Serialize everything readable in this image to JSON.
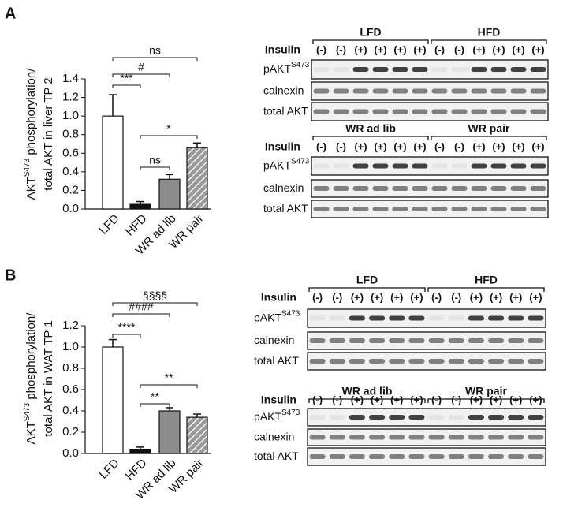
{
  "panel_labels": [
    "A",
    "B"
  ],
  "chart_data": [
    {
      "type": "bar",
      "y_label": {
        "base": "AKT",
        "sup": "S473",
        "rest": " phosphorylation/",
        "line2": "total AKT in liver TP 2"
      },
      "categories": [
        "LFD",
        "HFD",
        "WR ad lib",
        "WR pair"
      ],
      "values": [
        1.0,
        0.05,
        0.32,
        0.66
      ],
      "errors": [
        0.23,
        0.03,
        0.05,
        0.05
      ],
      "colors": [
        "#ffffff",
        "#111111",
        "#8c8c8c",
        "#9a9a9a"
      ],
      "hatch": [
        false,
        false,
        false,
        true
      ],
      "ylim": [
        0,
        1.4
      ],
      "yticks": [
        {
          "value": 0,
          "label": "0.0"
        },
        {
          "value": 0.2,
          "label": "0.2"
        },
        {
          "value": 0.4,
          "label": "0.4"
        },
        {
          "value": 0.6,
          "label": "0.6"
        },
        {
          "value": 0.8,
          "label": "0.8"
        },
        {
          "value": 1.0,
          "label": "1.0"
        },
        {
          "value": 1.2,
          "label": "1.2"
        },
        {
          "value": 1.4,
          "label": "1.4"
        }
      ],
      "annotations": [
        {
          "text": "***",
          "between": [
            "LFD",
            "HFD"
          ]
        },
        {
          "text": "#",
          "between": [
            "LFD",
            "WR ad lib"
          ]
        },
        {
          "text": "ns",
          "between": [
            "LFD",
            "WR pair"
          ]
        },
        {
          "text": "ns",
          "between": [
            "HFD",
            "WR ad lib"
          ]
        },
        {
          "text": "*",
          "between": [
            "HFD",
            "WR pair"
          ]
        }
      ]
    },
    {
      "type": "bar",
      "y_label": {
        "base": "AKT",
        "sup": "S473",
        "rest": " phosphorylation/",
        "line2": "total AKT in WAT TP 1"
      },
      "categories": [
        "LFD",
        "HFD",
        "WR ad lib",
        "WR pair"
      ],
      "values": [
        1.0,
        0.04,
        0.4,
        0.34
      ],
      "errors": [
        0.07,
        0.02,
        0.03,
        0.03
      ],
      "colors": [
        "#ffffff",
        "#111111",
        "#8c8c8c",
        "#9a9a9a"
      ],
      "hatch": [
        false,
        false,
        false,
        true
      ],
      "ylim": [
        0,
        1.2
      ],
      "yticks": [
        {
          "value": 0,
          "label": "0.0"
        },
        {
          "value": 0.2,
          "label": "0.2"
        },
        {
          "value": 0.4,
          "label": "0.4"
        },
        {
          "value": 0.6,
          "label": "0.6"
        },
        {
          "value": 0.8,
          "label": "0.8"
        },
        {
          "value": 1.0,
          "label": "1.0"
        },
        {
          "value": 1.2,
          "label": "1.2"
        }
      ],
      "annotations": [
        {
          "text": "****",
          "between": [
            "LFD",
            "HFD"
          ]
        },
        {
          "text": "####",
          "between": [
            "LFD",
            "WR ad lib"
          ]
        },
        {
          "text": "§§§§",
          "between": [
            "LFD",
            "WR pair"
          ]
        },
        {
          "text": "**",
          "between": [
            "HFD",
            "WR ad lib"
          ]
        },
        {
          "text": "**",
          "between": [
            "HFD",
            "WR pair"
          ]
        }
      ]
    }
  ],
  "blots": [
    [
      {
        "groups": [
          "LFD",
          "HFD"
        ],
        "insulin_label": "Insulin",
        "insulin": [
          "(-)",
          "(-)",
          "(+)",
          "(+)",
          "(+)",
          "(+)",
          "(-)",
          "(-)",
          "(+)",
          "(+)",
          "(+)",
          "(+)"
        ],
        "rows": [
          {
            "label": "pAKT",
            "sup": "S473"
          },
          {
            "label": "calnexin"
          },
          {
            "label": "total AKT"
          }
        ]
      },
      {
        "groups": [
          "WR ad lib",
          "WR pair"
        ],
        "insulin_label": "Insulin",
        "insulin": [
          "(-)",
          "(-)",
          "(+)",
          "(+)",
          "(+)",
          "(+)",
          "(-)",
          "(-)",
          "(+)",
          "(+)",
          "(+)",
          "(+)"
        ],
        "rows": [
          {
            "label": "pAKT",
            "sup": "S473"
          },
          {
            "label": "calnexin"
          },
          {
            "label": "total AKT"
          }
        ]
      }
    ],
    [
      {
        "groups": [
          "LFD",
          "HFD"
        ],
        "insulin_label": "Insulin",
        "insulin": [
          "(-)",
          "(-)",
          "(+)",
          "(+)",
          "(+)",
          "(+)",
          "(-)",
          "(-)",
          "(+)",
          "(+)",
          "(+)",
          "(+)"
        ],
        "rows": [
          {
            "label": "pAKT",
            "sup": "S473"
          },
          {
            "label": "calnexin"
          },
          {
            "label": "total AKT"
          }
        ]
      },
      {
        "groups": [
          "WR ad lib",
          "WR pair"
        ],
        "insulin_label": "Insulin",
        "insulin": [
          "(-)",
          "(-)",
          "(+)",
          "(+)",
          "(+)",
          "(+)",
          "(-)",
          "(-)",
          "(+)",
          "(+)",
          "(+)",
          "(+)"
        ],
        "rows": [
          {
            "label": "pAKT",
            "sup": "S473"
          },
          {
            "label": "calnexin"
          },
          {
            "label": "total AKT"
          }
        ]
      }
    ]
  ]
}
